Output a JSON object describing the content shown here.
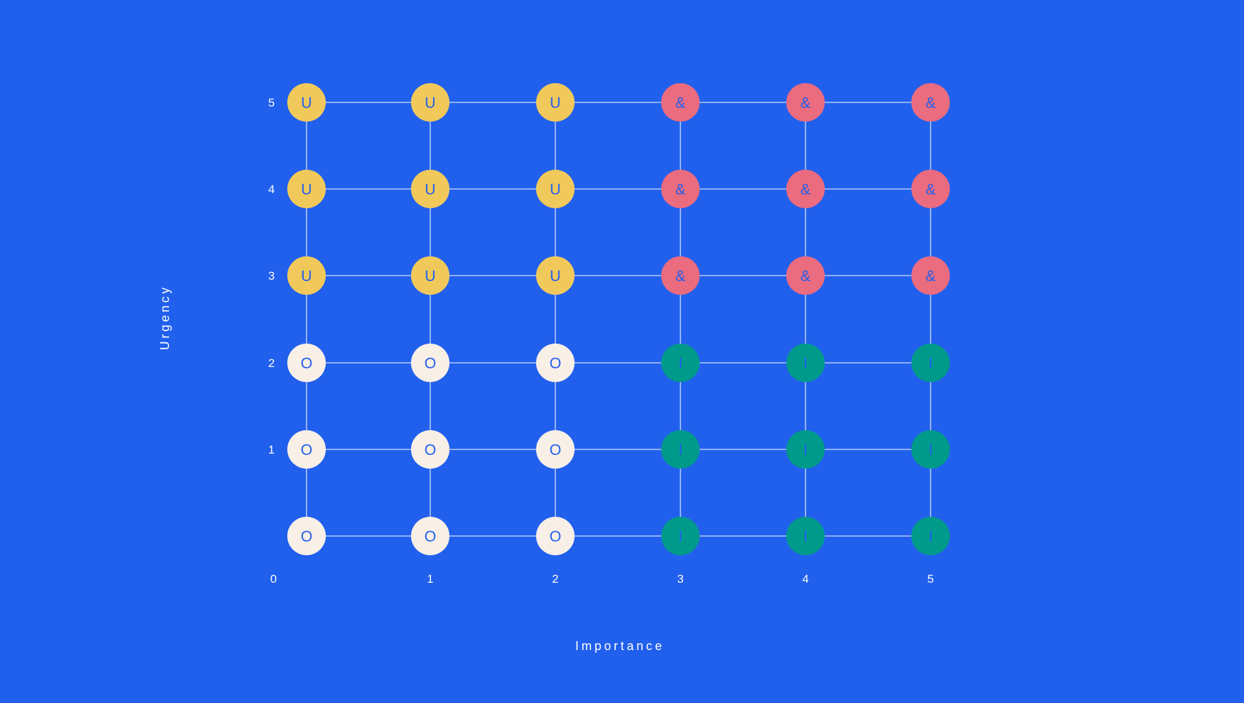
{
  "colors": {
    "background": "#2160ED",
    "grid": "#D6E1FF",
    "letter": "#2160ED",
    "U": "#F1C95B",
    "&": "#EB6B7F",
    "O": "#F8EFE6",
    "I": "#009A8B"
  },
  "chart_data": {
    "type": "scatter",
    "title": "",
    "xlabel": "Importance",
    "ylabel": "Urgency",
    "x_ticks": [
      "0",
      "1",
      "2",
      "3",
      "4",
      "5"
    ],
    "y_ticks": [
      "",
      "1",
      "2",
      "3",
      "4",
      "5"
    ],
    "xlim": [
      0,
      5
    ],
    "ylim": [
      0,
      5
    ],
    "grid": true,
    "points": [
      {
        "x": 0,
        "y": 5,
        "label": "U"
      },
      {
        "x": 1,
        "y": 5,
        "label": "U"
      },
      {
        "x": 2,
        "y": 5,
        "label": "U"
      },
      {
        "x": 3,
        "y": 5,
        "label": "&"
      },
      {
        "x": 4,
        "y": 5,
        "label": "&"
      },
      {
        "x": 5,
        "y": 5,
        "label": "&"
      },
      {
        "x": 0,
        "y": 4,
        "label": "U"
      },
      {
        "x": 1,
        "y": 4,
        "label": "U"
      },
      {
        "x": 2,
        "y": 4,
        "label": "U"
      },
      {
        "x": 3,
        "y": 4,
        "label": "&"
      },
      {
        "x": 4,
        "y": 4,
        "label": "&"
      },
      {
        "x": 5,
        "y": 4,
        "label": "&"
      },
      {
        "x": 0,
        "y": 3,
        "label": "U"
      },
      {
        "x": 1,
        "y": 3,
        "label": "U"
      },
      {
        "x": 2,
        "y": 3,
        "label": "U"
      },
      {
        "x": 3,
        "y": 3,
        "label": "&"
      },
      {
        "x": 4,
        "y": 3,
        "label": "&"
      },
      {
        "x": 5,
        "y": 3,
        "label": "&"
      },
      {
        "x": 0,
        "y": 2,
        "label": "O"
      },
      {
        "x": 1,
        "y": 2,
        "label": "O"
      },
      {
        "x": 2,
        "y": 2,
        "label": "O"
      },
      {
        "x": 3,
        "y": 2,
        "label": "I"
      },
      {
        "x": 4,
        "y": 2,
        "label": "I"
      },
      {
        "x": 5,
        "y": 2,
        "label": "I"
      },
      {
        "x": 0,
        "y": 1,
        "label": "O"
      },
      {
        "x": 1,
        "y": 1,
        "label": "O"
      },
      {
        "x": 2,
        "y": 1,
        "label": "O"
      },
      {
        "x": 3,
        "y": 1,
        "label": "I"
      },
      {
        "x": 4,
        "y": 1,
        "label": "I"
      },
      {
        "x": 5,
        "y": 1,
        "label": "I"
      },
      {
        "x": 0,
        "y": 0,
        "label": "O"
      },
      {
        "x": 1,
        "y": 0,
        "label": "O"
      },
      {
        "x": 2,
        "y": 0,
        "label": "O"
      },
      {
        "x": 3,
        "y": 0,
        "label": "I"
      },
      {
        "x": 4,
        "y": 0,
        "label": "I"
      },
      {
        "x": 5,
        "y": 0,
        "label": "I"
      }
    ]
  }
}
